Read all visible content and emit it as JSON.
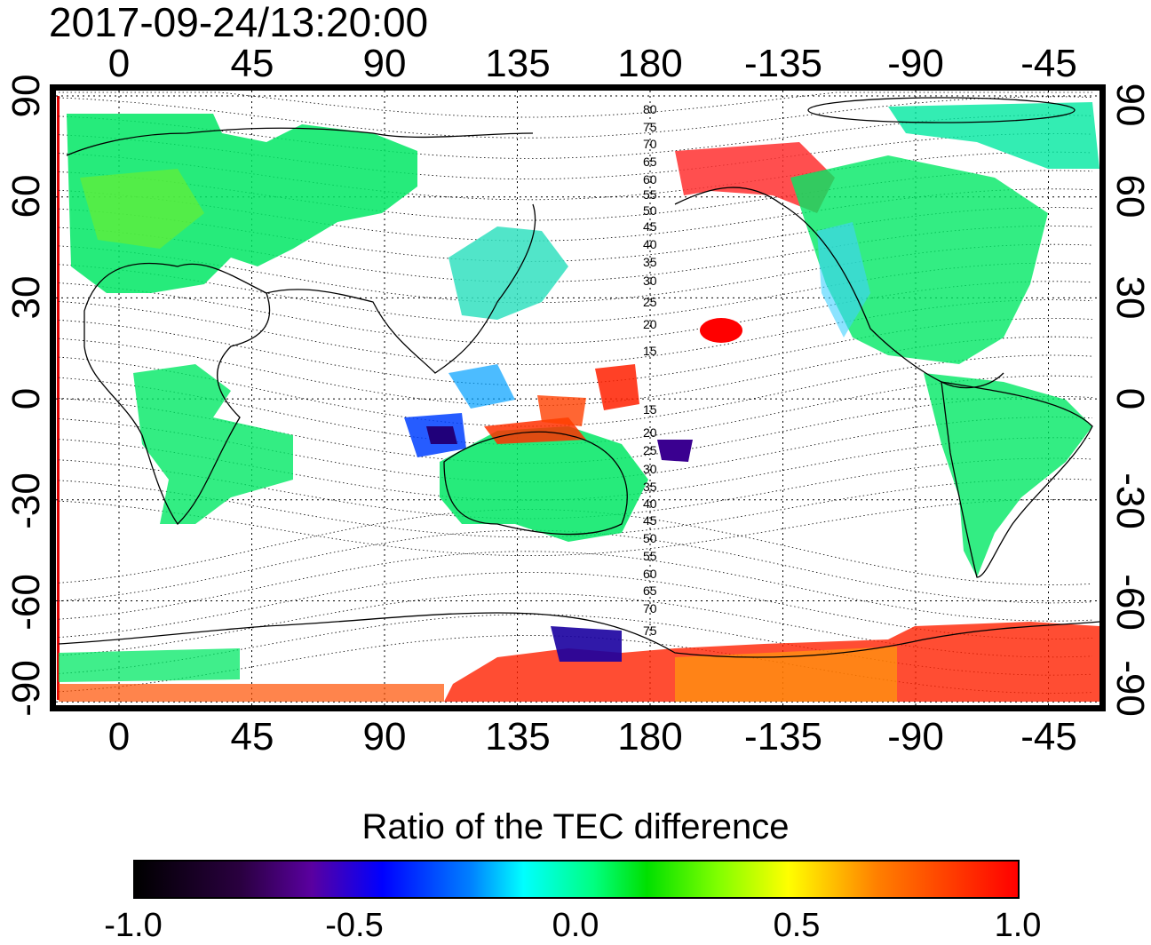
{
  "timestamp": "2017-09-24/13:20:00",
  "colorbar": {
    "title": "Ratio of the TEC difference",
    "ticks": [
      "-1.0",
      "-0.5",
      "0.0",
      "0.5",
      "1.0"
    ]
  },
  "axes": {
    "lon_labels": [
      "0",
      "45",
      "90",
      "135",
      "180",
      "-135",
      "-90",
      "-45"
    ],
    "lat_labels": [
      "90",
      "60",
      "30",
      "0",
      "-30",
      "-60",
      "-90"
    ]
  },
  "contour_labels": [
    "80",
    "75",
    "70",
    "65",
    "60",
    "55",
    "50",
    "45",
    "40",
    "35",
    "30",
    "25",
    "20",
    "15",
    "15",
    "20",
    "25",
    "30",
    "35",
    "40",
    "45",
    "50",
    "55",
    "60",
    "65",
    "70",
    "75"
  ],
  "colors": {
    "negative": "#0000ff",
    "zero": "#00e060",
    "positive": "#ff0000",
    "coast": "#000000"
  },
  "chart_data": {
    "type": "heatmap",
    "title": "2017-09-24/13:20:00",
    "xlabel": "",
    "ylabel": "",
    "xlim": [
      -20,
      315
    ],
    "ylim": [
      -90,
      90
    ],
    "colorbar_range": [
      -1.0,
      1.0
    ],
    "regions": [
      {
        "lon": 15,
        "lat": 55,
        "value": 0.05
      },
      {
        "lon": 130,
        "lat": 35,
        "value": -0.05
      },
      {
        "lon": 110,
        "lat": -12,
        "value": -0.8
      },
      {
        "lon": 160,
        "lat": 0,
        "value": 0.9
      },
      {
        "lon": 205,
        "lat": 20,
        "value": 1.0
      },
      {
        "lon": 195,
        "lat": 65,
        "value": 0.8
      },
      {
        "lon": 255,
        "lat": 40,
        "value": 0.05
      },
      {
        "lon": 300,
        "lat": -15,
        "value": 0.0
      },
      {
        "lon": 135,
        "lat": -25,
        "value": 0.1
      },
      {
        "lon": 155,
        "lat": -75,
        "value": -0.7
      },
      {
        "lon": 200,
        "lat": -80,
        "value": 0.9
      }
    ]
  }
}
